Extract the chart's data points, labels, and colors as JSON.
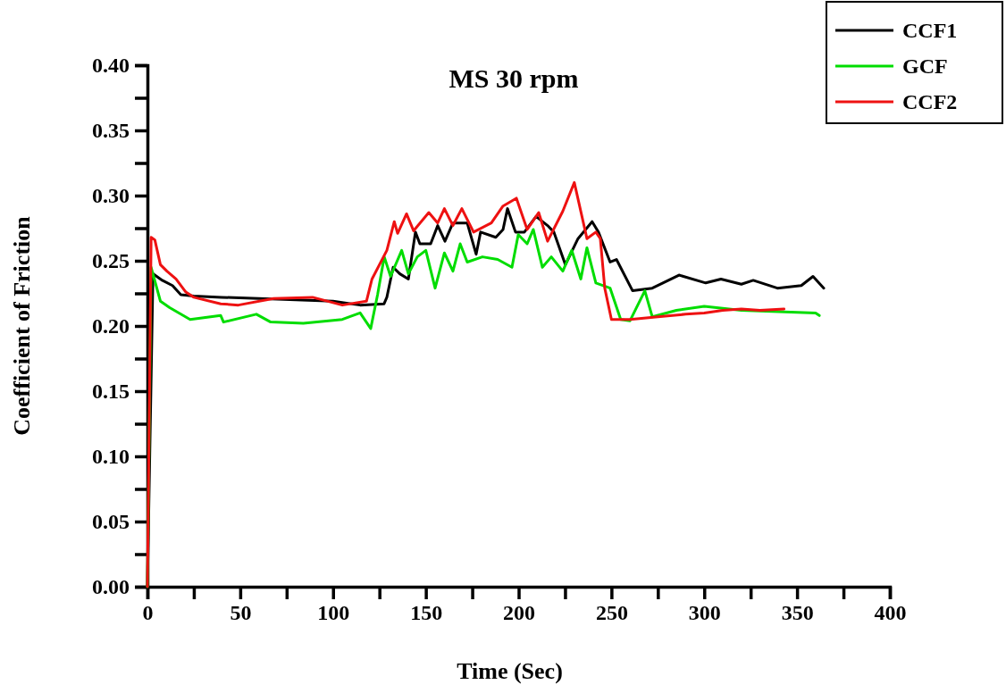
{
  "chart_data": {
    "type": "line",
    "title": "MS 30 rpm",
    "xlabel": "Time (Sec)",
    "ylabel": "Coefficient of Friction",
    "xlim": [
      0,
      400
    ],
    "ylim": [
      0,
      0.4
    ],
    "xticks": [
      0,
      {
        "value": 25,
        "label": null
      },
      50,
      {
        "value": 75,
        "label": null
      },
      100,
      {
        "value": 125,
        "label": null
      },
      150,
      {
        "value": 175,
        "label": null
      },
      200,
      {
        "value": 225,
        "label": null
      },
      250,
      {
        "value": 275,
        "label": null
      },
      300,
      {
        "value": 325,
        "label": null
      },
      350,
      {
        "value": 375,
        "label": null
      },
      400
    ],
    "yticks": [
      {
        "value": 0,
        "label": "0.00"
      },
      {
        "value": 0.025,
        "label": null
      },
      {
        "value": 0.05,
        "label": "0.05"
      },
      {
        "value": 0.075,
        "label": null
      },
      {
        "value": 0.1,
        "label": "0.10"
      },
      {
        "value": 0.125,
        "label": null
      },
      {
        "value": 0.15,
        "label": "0.15"
      },
      {
        "value": 0.175,
        "label": null
      },
      {
        "value": 0.2,
        "label": "0.20"
      },
      {
        "value": 0.225,
        "label": null
      },
      {
        "value": 0.25,
        "label": "0.25"
      },
      {
        "value": 0.275,
        "label": null
      },
      {
        "value": 0.3,
        "label": "0.30"
      },
      {
        "value": 0.325,
        "label": null
      },
      {
        "value": 0.35,
        "label": "0.35"
      },
      {
        "value": 0.375,
        "label": null
      },
      {
        "value": 0.4,
        "label": "0.40"
      }
    ],
    "grid": false,
    "legend": "top right",
    "line_style": "solid",
    "marker": "none",
    "series": [
      {
        "name": "CCF1",
        "color": "#000000",
        "x": [
          0,
          3,
          8,
          13.5,
          18,
          25,
          40,
          60,
          80,
          100,
          114.6,
          127.5,
          129,
          132.4,
          136,
          140.6,
          144.4,
          146.8,
          152.6,
          156.4,
          160.3,
          164.6,
          172.3,
          177.1,
          179.5,
          187.7,
          191.6,
          194,
          198.3,
          203.1,
          209.4,
          215.6,
          219,
          225.2,
          232,
          239.6,
          243,
          249.3,
          252.7,
          261.4,
          272,
          286.4,
          300.8,
          309,
          320,
          326.4,
          339.4,
          352.3,
          358.6,
          364.4
        ],
        "values": [
          0,
          0.24,
          0.235,
          0.231,
          0.224,
          0.223,
          0.222,
          0.221,
          0.22,
          0.219,
          0.216,
          0.217,
          0.222,
          0.245,
          0.24,
          0.236,
          0.272,
          0.263,
          0.263,
          0.277,
          0.265,
          0.279,
          0.279,
          0.255,
          0.272,
          0.268,
          0.274,
          0.29,
          0.272,
          0.272,
          0.284,
          0.277,
          0.272,
          0.247,
          0.267,
          0.28,
          0.272,
          0.249,
          0.251,
          0.227,
          0.229,
          0.239,
          0.233,
          0.236,
          0.232,
          0.235,
          0.229,
          0.231,
          0.238,
          0.229
        ]
      },
      {
        "name": "GCF",
        "color": "#00dd00",
        "x": [
          0,
          2,
          7,
          12,
          23,
          39.5,
          41,
          58.7,
          66.4,
          84,
          105,
          114.6,
          120.3,
          124,
          127.6,
          131,
          137,
          140.6,
          145.4,
          150,
          155,
          160,
          164.6,
          168.5,
          172.3,
          180.5,
          188.7,
          196.4,
          199.8,
          204.6,
          207.9,
          212.8,
          217.6,
          223.8,
          228.6,
          233.5,
          236.8,
          241.6,
          249.3,
          255,
          260,
          268,
          272,
          285,
          300,
          320,
          340,
          360,
          362
        ],
        "values": [
          0,
          0.245,
          0.219,
          0.214,
          0.205,
          0.208,
          0.203,
          0.209,
          0.203,
          0.202,
          0.205,
          0.21,
          0.198,
          0.224,
          0.253,
          0.238,
          0.258,
          0.24,
          0.253,
          0.258,
          0.229,
          0.256,
          0.242,
          0.263,
          0.249,
          0.253,
          0.251,
          0.245,
          0.27,
          0.263,
          0.274,
          0.245,
          0.253,
          0.242,
          0.258,
          0.236,
          0.26,
          0.233,
          0.229,
          0.205,
          0.204,
          0.227,
          0.207,
          0.212,
          0.215,
          0.212,
          0.211,
          0.21,
          0.208
        ]
      },
      {
        "name": "CCF2",
        "color": "#ee1111",
        "x": [
          0,
          2,
          4,
          7,
          10.5,
          15.4,
          20.7,
          25,
          39.5,
          49,
          68,
          89,
          105,
          118,
          121,
          129,
          133,
          134.8,
          139.6,
          143.4,
          151.6,
          156.4,
          160,
          164.6,
          169.4,
          175.7,
          185.3,
          191.6,
          198.8,
          204.6,
          210.8,
          215.6,
          223.8,
          230,
          236.8,
          241.6,
          244,
          246.4,
          250,
          260,
          275,
          290,
          300,
          310,
          320,
          330,
          343
        ],
        "values": [
          0,
          0.268,
          0.266,
          0.247,
          0.242,
          0.236,
          0.226,
          0.222,
          0.217,
          0.216,
          0.221,
          0.222,
          0.216,
          0.219,
          0.236,
          0.258,
          0.28,
          0.271,
          0.286,
          0.273,
          0.287,
          0.279,
          0.29,
          0.277,
          0.29,
          0.272,
          0.279,
          0.292,
          0.298,
          0.274,
          0.287,
          0.265,
          0.288,
          0.31,
          0.267,
          0.272,
          0.267,
          0.229,
          0.205,
          0.205,
          0.207,
          0.209,
          0.21,
          0.212,
          0.213,
          0.212,
          0.213
        ]
      }
    ]
  }
}
